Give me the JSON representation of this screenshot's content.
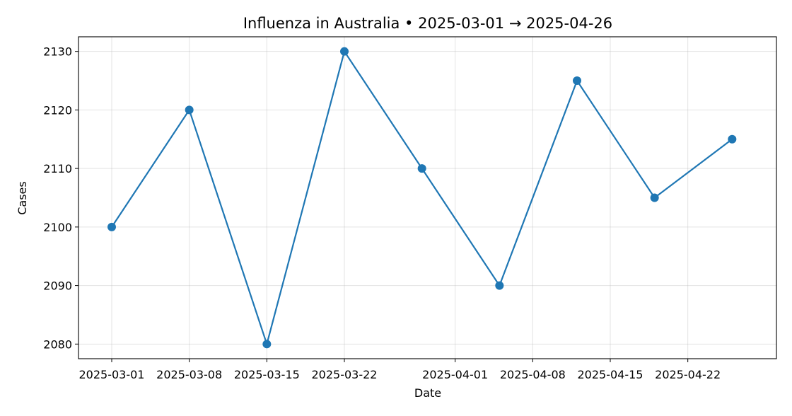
{
  "chart_data": {
    "type": "line",
    "title": "Influenza in Australia • 2025-03-01 → 2025-04-26",
    "xlabel": "Date",
    "ylabel": "Cases",
    "x_is_date": true,
    "x": [
      "2025-03-01",
      "2025-03-08",
      "2025-03-15",
      "2025-03-22",
      "2025-03-29",
      "2025-04-05",
      "2025-04-12",
      "2025-04-19",
      "2025-04-26"
    ],
    "series": [
      {
        "values": [
          2100,
          2120,
          2080,
          2130,
          2110,
          2090,
          2125,
          2105,
          2115
        ]
      }
    ],
    "xlim": [
      "2025-02-26",
      "2025-04-30"
    ],
    "ylim": [
      2077.5,
      2132.5
    ],
    "x_ticks": [
      "2025-03-01",
      "2025-03-08",
      "2025-03-15",
      "2025-03-22",
      "2025-04-01",
      "2025-04-08",
      "2025-04-15",
      "2025-04-22"
    ],
    "y_ticks": [
      2080,
      2090,
      2100,
      2110,
      2120,
      2130
    ],
    "grid": true,
    "colors": {
      "line": "#1f77b4",
      "marker": "#1f77b4"
    }
  }
}
